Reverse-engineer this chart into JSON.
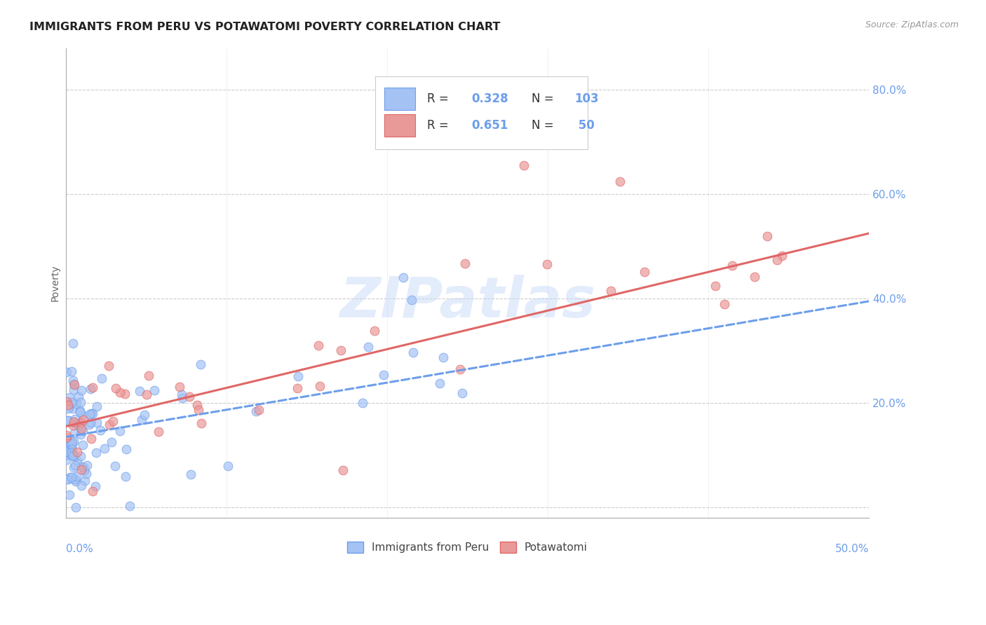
{
  "title": "IMMIGRANTS FROM PERU VS POTAWATOMI POVERTY CORRELATION CHART",
  "source": "Source: ZipAtlas.com",
  "ylabel": "Poverty",
  "legend_label1": "Immigrants from Peru",
  "legend_label2": "Potawatomi",
  "xlim": [
    0.0,
    0.5
  ],
  "ylim": [
    -0.02,
    0.88
  ],
  "yticks": [
    0.0,
    0.2,
    0.4,
    0.6,
    0.8
  ],
  "ytick_labels": [
    "",
    "20.0%",
    "40.0%",
    "60.0%",
    "80.0%"
  ],
  "color_blue": "#a4c2f4",
  "color_blue_edge": "#6d9eeb",
  "color_pink": "#ea9999",
  "color_pink_edge": "#e06666",
  "color_blue_line": "#6d9eeb",
  "color_pink_line": "#e06666",
  "color_tick_label": "#6d9eeb",
  "background": "#ffffff",
  "grid_color": "#cccccc",
  "peru_line_y0": 0.135,
  "peru_line_y1": 0.395,
  "potawatomi_line_y0": 0.155,
  "potawatomi_line_y1": 0.525
}
